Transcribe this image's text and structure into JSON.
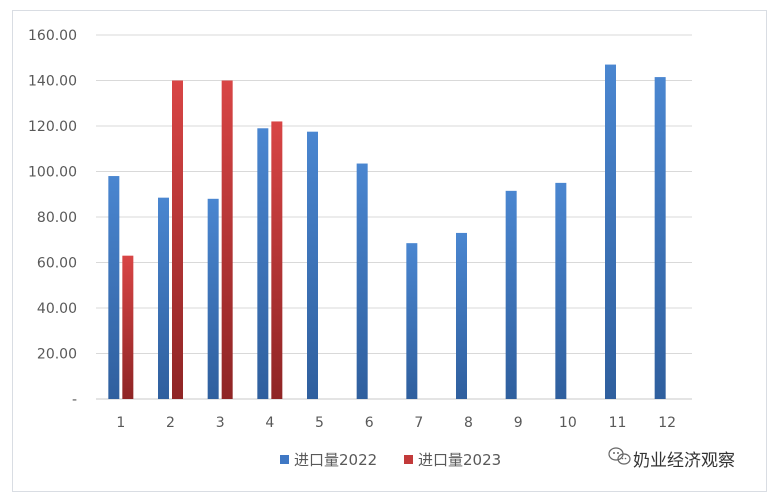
{
  "chart_data": {
    "type": "bar",
    "categories": [
      "1",
      "2",
      "3",
      "4",
      "5",
      "6",
      "7",
      "8",
      "9",
      "10",
      "11",
      "12"
    ],
    "series": [
      {
        "name": "进口量2022",
        "color": "#3f78c4",
        "values": [
          98,
          88.5,
          88,
          119,
          117.5,
          103.5,
          68.5,
          73,
          91.5,
          95,
          147,
          141.5
        ]
      },
      {
        "name": "进口量2023",
        "color": "#c23a3a",
        "values": [
          63,
          140,
          140,
          122,
          null,
          null,
          null,
          null,
          null,
          null,
          null,
          null
        ]
      }
    ],
    "y_ticks": [
      "-",
      "20.00",
      "40.00",
      "60.00",
      "80.00",
      "100.00",
      "120.00",
      "140.00",
      "160.00"
    ],
    "ylim": [
      0,
      160
    ],
    "grid": true,
    "legend": "bottom-center"
  },
  "watermark": {
    "text": "奶业经济观察",
    "icon": "wechat-icon"
  }
}
